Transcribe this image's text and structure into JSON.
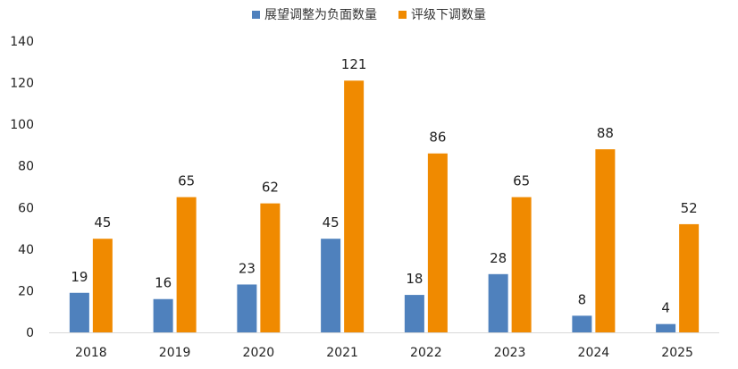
{
  "chart_data": {
    "type": "bar",
    "title": "",
    "xlabel": "",
    "ylabel": "",
    "categories": [
      "2018",
      "2019",
      "2020",
      "2021",
      "2022",
      "2023",
      "2024",
      "2025"
    ],
    "series": [
      {
        "name": "展望调整为负面数量",
        "color": "#4f81bd",
        "values": [
          19,
          16,
          23,
          45,
          18,
          28,
          8,
          4
        ]
      },
      {
        "name": "评级下调数量",
        "color": "#f08a00",
        "values": [
          45,
          65,
          62,
          121,
          86,
          65,
          88,
          52
        ]
      }
    ],
    "ylim": [
      0,
      140
    ],
    "yticks": [
      0,
      20,
      40,
      60,
      80,
      100,
      120,
      140
    ],
    "grid": false,
    "legend_position": "top-center"
  }
}
